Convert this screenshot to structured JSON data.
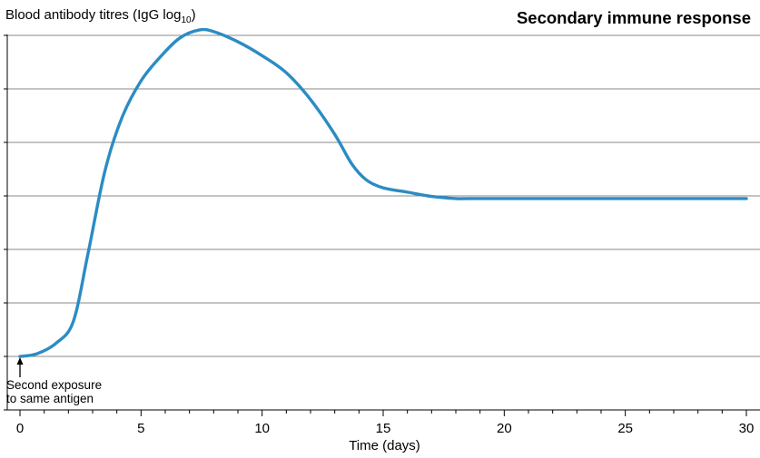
{
  "chart_data": {
    "type": "line",
    "title": "Secondary immune response",
    "ylabel_text": "Blood antibody titres (IgG log",
    "ylabel_sub": "10",
    "ylabel_close": ")",
    "xlabel": "Time (days)",
    "xlim": [
      0,
      30
    ],
    "ylim": [
      0,
      7
    ],
    "x_ticks": [
      "0",
      "5",
      "10",
      "15",
      "20",
      "25",
      "30"
    ],
    "grid": true,
    "annotation_line1": "Second exposure",
    "annotation_line2": "to same antigen",
    "annotation_x": 0,
    "series": [
      {
        "color": "#2b8cc4",
        "x": [
          0,
          0.7,
          1.5,
          2.2,
          2.8,
          3.5,
          4.2,
          5,
          5.8,
          6.6,
          7.4,
          8,
          9,
          10,
          11,
          12,
          13,
          13.7,
          14.3,
          15,
          16,
          17,
          18,
          18.5,
          20,
          25,
          30
        ],
        "y": [
          0.0,
          0.05,
          0.25,
          0.65,
          1.9,
          3.45,
          4.45,
          5.15,
          5.6,
          5.95,
          6.1,
          6.07,
          5.88,
          5.62,
          5.3,
          4.8,
          4.15,
          3.6,
          3.3,
          3.15,
          3.07,
          2.99,
          2.95,
          2.95,
          2.95,
          2.95,
          2.95
        ]
      }
    ]
  }
}
